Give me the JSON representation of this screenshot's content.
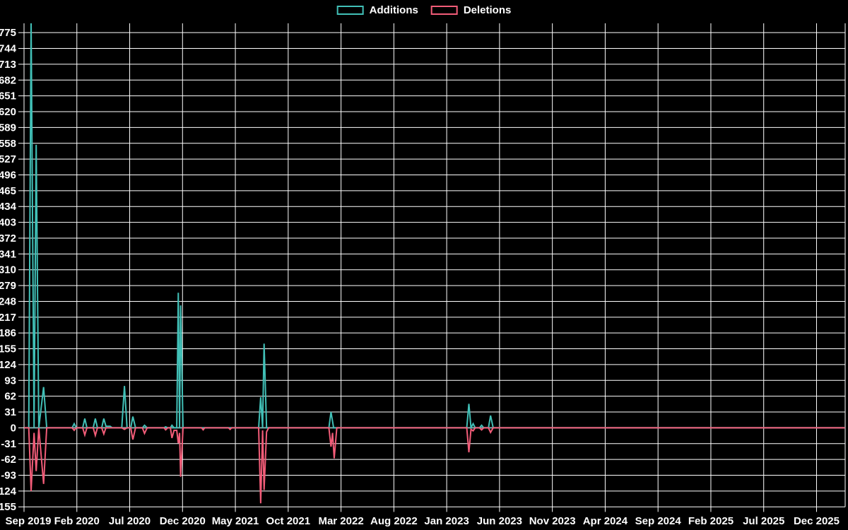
{
  "page": {
    "background": "#000000",
    "grid_color": "#ffffff",
    "axis_text_color": "#ffffff",
    "zero_line_color": "#87a9a9"
  },
  "legend": {
    "items": [
      {
        "label": "Additions",
        "color": "#41c0b7"
      },
      {
        "label": "Deletions",
        "color": "#f25c78"
      }
    ]
  },
  "chart_data": {
    "type": "line",
    "title": "",
    "xlabel": "",
    "ylabel": "",
    "grid": true,
    "legend_position": "top-center",
    "background": "#000000",
    "x_tick_labels": [
      "Sep 2019",
      "Feb 2020",
      "Jul 2020",
      "Dec 2020",
      "May 2021",
      "Oct 2021",
      "Mar 2022",
      "Aug 2022",
      "Jan 2023",
      "Jun 2023",
      "Nov 2023",
      "Apr 2024",
      "Sep 2024",
      "Feb 2025",
      "Jul 2025",
      "Dec 2025"
    ],
    "x_tick_interval_months": 5,
    "y_ticks": [
      775,
      744,
      713,
      682,
      651,
      620,
      589,
      558,
      527,
      496,
      465,
      434,
      403,
      372,
      341,
      310,
      279,
      248,
      217,
      186,
      155,
      124,
      93,
      62,
      31,
      0,
      -31,
      -62,
      -93,
      -124,
      -155
    ],
    "ylim": [
      -155,
      793
    ],
    "note": "x unit for series points = months after Sep 2019; first Additions spike is clipped at the top of the plot (~800)",
    "series": [
      {
        "name": "Additions",
        "color": "#41c0b7",
        "points": [
          [
            0.0,
            0
          ],
          [
            0.45,
            0
          ],
          [
            0.67,
            800
          ],
          [
            0.95,
            0
          ],
          [
            1.15,
            555
          ],
          [
            1.4,
            0
          ],
          [
            1.85,
            80
          ],
          [
            2.15,
            0
          ],
          [
            4.55,
            0
          ],
          [
            4.75,
            8
          ],
          [
            4.95,
            0
          ],
          [
            5.55,
            0
          ],
          [
            5.75,
            18
          ],
          [
            5.95,
            0
          ],
          [
            6.55,
            0
          ],
          [
            6.75,
            18
          ],
          [
            6.95,
            0
          ],
          [
            7.35,
            0
          ],
          [
            7.55,
            18
          ],
          [
            7.75,
            3
          ],
          [
            8.15,
            3
          ],
          [
            8.35,
            0
          ],
          [
            9.25,
            0
          ],
          [
            9.5,
            82
          ],
          [
            9.75,
            0
          ],
          [
            10.1,
            0
          ],
          [
            10.3,
            22
          ],
          [
            10.55,
            0
          ],
          [
            11.2,
            0
          ],
          [
            11.4,
            5
          ],
          [
            11.65,
            0
          ],
          [
            13.25,
            0
          ],
          [
            13.4,
            2
          ],
          [
            13.6,
            0
          ],
          [
            13.85,
            0
          ],
          [
            14.0,
            5
          ],
          [
            14.2,
            0
          ],
          [
            14.45,
            0
          ],
          [
            14.6,
            265
          ],
          [
            14.72,
            0
          ],
          [
            14.82,
            240
          ],
          [
            15.05,
            0
          ],
          [
            22.2,
            0
          ],
          [
            22.4,
            60
          ],
          [
            22.58,
            0
          ],
          [
            22.72,
            165
          ],
          [
            22.95,
            0
          ],
          [
            28.85,
            0
          ],
          [
            29.05,
            31
          ],
          [
            29.3,
            0
          ],
          [
            41.9,
            0
          ],
          [
            42.1,
            47
          ],
          [
            42.3,
            0
          ],
          [
            42.5,
            8
          ],
          [
            42.7,
            0
          ],
          [
            43.1,
            0
          ],
          [
            43.3,
            5
          ],
          [
            43.5,
            0
          ],
          [
            43.95,
            0
          ],
          [
            44.15,
            24
          ],
          [
            44.4,
            0
          ],
          [
            77.7,
            0
          ]
        ]
      },
      {
        "name": "Deletions",
        "color": "#f25c78",
        "points": [
          [
            0.0,
            0
          ],
          [
            0.45,
            0
          ],
          [
            0.67,
            -124
          ],
          [
            0.95,
            -10
          ],
          [
            1.15,
            -85
          ],
          [
            1.4,
            0
          ],
          [
            1.85,
            -110
          ],
          [
            2.15,
            0
          ],
          [
            4.55,
            0
          ],
          [
            4.75,
            -5
          ],
          [
            4.95,
            0
          ],
          [
            5.55,
            0
          ],
          [
            5.75,
            -14
          ],
          [
            5.95,
            0
          ],
          [
            6.55,
            0
          ],
          [
            6.75,
            -15
          ],
          [
            6.95,
            0
          ],
          [
            7.35,
            0
          ],
          [
            7.55,
            -12
          ],
          [
            7.75,
            0
          ],
          [
            9.25,
            0
          ],
          [
            9.5,
            -3
          ],
          [
            9.75,
            0
          ],
          [
            10.1,
            0
          ],
          [
            10.3,
            -23
          ],
          [
            10.55,
            0
          ],
          [
            11.2,
            0
          ],
          [
            11.4,
            -11
          ],
          [
            11.65,
            0
          ],
          [
            13.25,
            0
          ],
          [
            13.4,
            -4
          ],
          [
            13.6,
            0
          ],
          [
            13.85,
            0
          ],
          [
            14.0,
            -20
          ],
          [
            14.2,
            -5
          ],
          [
            14.45,
            -5
          ],
          [
            14.6,
            -30
          ],
          [
            14.72,
            -10
          ],
          [
            14.82,
            -96
          ],
          [
            15.05,
            0
          ],
          [
            16.8,
            0
          ],
          [
            16.95,
            -4
          ],
          [
            17.1,
            0
          ],
          [
            19.35,
            0
          ],
          [
            19.5,
            -3
          ],
          [
            19.65,
            0
          ],
          [
            22.2,
            0
          ],
          [
            22.4,
            -148
          ],
          [
            22.58,
            -5
          ],
          [
            22.72,
            -122
          ],
          [
            22.95,
            -8
          ],
          [
            23.15,
            0
          ],
          [
            28.85,
            0
          ],
          [
            29.05,
            -37
          ],
          [
            29.2,
            -10
          ],
          [
            29.35,
            -60
          ],
          [
            29.6,
            0
          ],
          [
            41.9,
            0
          ],
          [
            42.1,
            -48
          ],
          [
            42.3,
            -3
          ],
          [
            42.5,
            -6
          ],
          [
            42.7,
            0
          ],
          [
            43.1,
            0
          ],
          [
            43.3,
            -4
          ],
          [
            43.5,
            0
          ],
          [
            43.95,
            0
          ],
          [
            44.15,
            -9
          ],
          [
            44.4,
            0
          ],
          [
            77.7,
            0
          ]
        ]
      }
    ]
  }
}
